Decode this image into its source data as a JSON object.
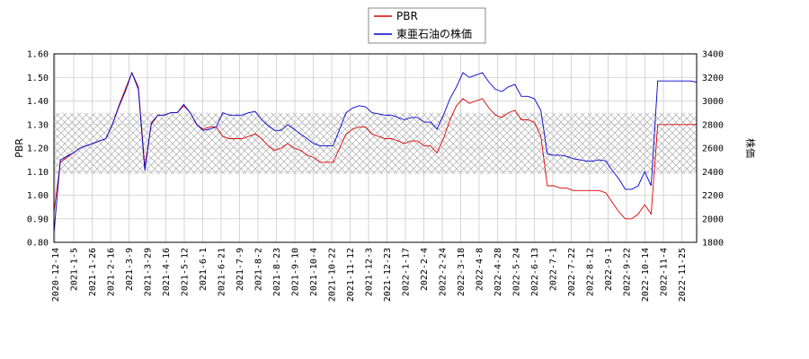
{
  "chart_data": {
    "type": "line",
    "title": "",
    "xlabel": "",
    "ylabel_left": "PBR",
    "ylabel_right": "株価",
    "ylim_left": [
      0.8,
      1.6
    ],
    "ylim_right": [
      1800,
      3400
    ],
    "yticks_left": [
      "0.80",
      "0.90",
      "1.00",
      "1.10",
      "1.20",
      "1.30",
      "1.40",
      "1.50",
      "1.60"
    ],
    "yticks_right": [
      "1800",
      "2000",
      "2200",
      "2400",
      "2600",
      "2800",
      "3000",
      "3200",
      "3400"
    ],
    "xticks": [
      "2020-12-14",
      "2021-1-5",
      "2021-1-26",
      "2021-2-16",
      "2021-3-9",
      "2021-3-29",
      "2021-4-16",
      "2021-5-12",
      "2021-6-1",
      "2021-6-21",
      "2021-7-9",
      "2021-8-2",
      "2021-8-23",
      "2021-9-10",
      "2021-10-4",
      "2021-10-22",
      "2021-11-12",
      "2021-12-3",
      "2021-12-23",
      "2022-1-17",
      "2022-2-4",
      "2022-2-24",
      "2022-3-18",
      "2022-4-8",
      "2022-4-28",
      "2022-5-24",
      "2022-6-13",
      "2022-7-1",
      "2022-7-22",
      "2022-8-12",
      "2022-9-1",
      "2022-9-22",
      "2022-10-14",
      "2022-11-4",
      "2022-11-25"
    ],
    "band_left": [
      1.09,
      1.35
    ],
    "grid": true,
    "legend_position": "top-center",
    "series": [
      {
        "name": "PBR",
        "axis": "left",
        "color": "#dd0000",
        "values": [
          0.93,
          1.14,
          1.16,
          1.18,
          1.2,
          1.21,
          1.22,
          1.23,
          1.24,
          1.3,
          1.38,
          1.45,
          1.52,
          1.46,
          1.12,
          1.3,
          1.34,
          1.34,
          1.35,
          1.35,
          1.38,
          1.35,
          1.3,
          1.28,
          1.29,
          1.29,
          1.25,
          1.24,
          1.24,
          1.24,
          1.25,
          1.26,
          1.24,
          1.21,
          1.19,
          1.2,
          1.22,
          1.2,
          1.19,
          1.17,
          1.16,
          1.14,
          1.14,
          1.14,
          1.2,
          1.26,
          1.28,
          1.29,
          1.29,
          1.26,
          1.25,
          1.24,
          1.24,
          1.23,
          1.22,
          1.23,
          1.23,
          1.21,
          1.21,
          1.18,
          1.24,
          1.32,
          1.38,
          1.41,
          1.39,
          1.4,
          1.41,
          1.37,
          1.34,
          1.33,
          1.35,
          1.36,
          1.32,
          1.32,
          1.31,
          1.25,
          1.04,
          1.04,
          1.03,
          1.03,
          1.02,
          1.02,
          1.02,
          1.02,
          1.02,
          1.01,
          0.97,
          0.93,
          0.9,
          0.9,
          0.92,
          0.96,
          0.92,
          1.3,
          1.3,
          1.3,
          1.3,
          1.3,
          1.3,
          1.3
        ]
      },
      {
        "name": "東亜石油の株価",
        "axis": "right",
        "color": "#0000cc",
        "values": [
          1880,
          2500,
          2530,
          2560,
          2600,
          2620,
          2640,
          2660,
          2680,
          2800,
          2950,
          3080,
          3240,
          3100,
          2410,
          2810,
          2880,
          2880,
          2900,
          2900,
          2970,
          2900,
          2800,
          2750,
          2760,
          2780,
          2900,
          2880,
          2880,
          2880,
          2900,
          2910,
          2840,
          2790,
          2750,
          2750,
          2800,
          2760,
          2720,
          2680,
          2640,
          2620,
          2620,
          2620,
          2760,
          2900,
          2940,
          2960,
          2950,
          2900,
          2890,
          2880,
          2880,
          2860,
          2840,
          2860,
          2860,
          2820,
          2820,
          2760,
          2880,
          3020,
          3120,
          3240,
          3200,
          3220,
          3240,
          3160,
          3100,
          3080,
          3120,
          3140,
          3040,
          3040,
          3020,
          2920,
          2550,
          2540,
          2540,
          2530,
          2510,
          2500,
          2490,
          2490,
          2500,
          2490,
          2410,
          2340,
          2250,
          2250,
          2280,
          2400,
          2280,
          3170,
          3170,
          3170,
          3170,
          3170,
          3170,
          3160
        ]
      }
    ]
  }
}
